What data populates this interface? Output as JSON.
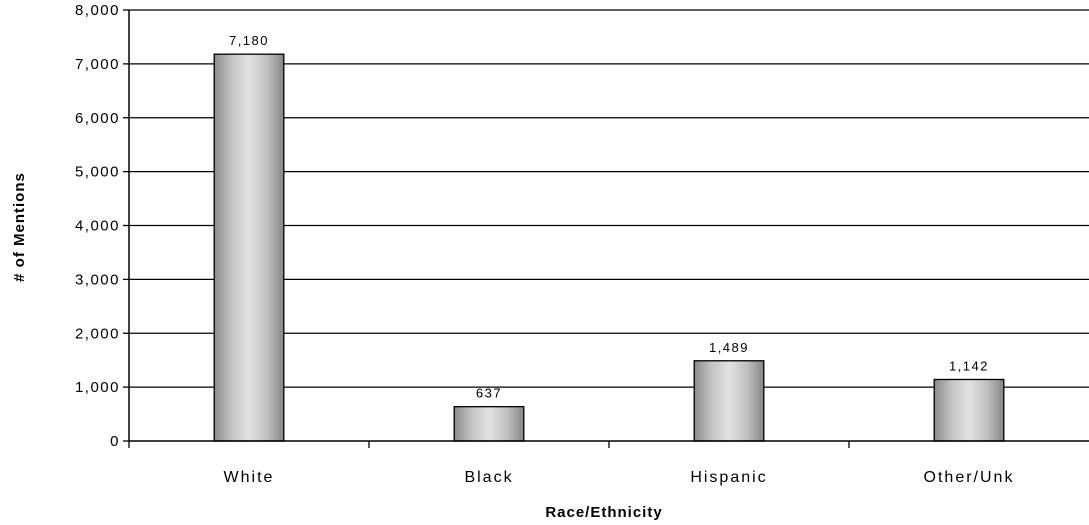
{
  "chart_data": {
    "type": "bar",
    "categories": [
      "White",
      "Black",
      "Hispanic",
      "Other/Unk"
    ],
    "values": [
      7180,
      637,
      1489,
      1142
    ],
    "data_labels": [
      "7,180",
      "637",
      "1,489",
      "1,142"
    ],
    "y_ticks": [
      "0",
      "1,000",
      "2,000",
      "3,000",
      "4,000",
      "5,000",
      "6,000",
      "7,000",
      "8,000"
    ],
    "y_tick_values": [
      0,
      1000,
      2000,
      3000,
      4000,
      5000,
      6000,
      7000,
      8000
    ],
    "ylim": [
      0,
      8000
    ],
    "title": "",
    "xlabel": "Race/Ethnicity",
    "ylabel": "# of Mentions",
    "grid": true,
    "legend": "none",
    "bar_color": "#bdbdbd",
    "bar_edge_color": "#000000"
  }
}
